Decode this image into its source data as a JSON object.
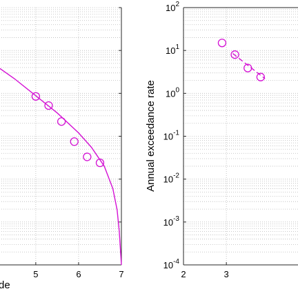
{
  "chart_data": [
    {
      "type": "line",
      "xlabel": "de",
      "ylabel": "",
      "xlim": [
        4.1,
        7.0
      ],
      "xticks": [
        5,
        6,
        7
      ],
      "yscale": "log",
      "ylim_log10": [
        -4,
        2
      ],
      "grid": true,
      "color": "#d411d4",
      "series": [
        {
          "kind": "scatter",
          "marker": "circle-open",
          "x": [
            5.0,
            5.3,
            5.6,
            5.9,
            6.2,
            6.5
          ],
          "y": [
            0.85,
            0.52,
            0.22,
            0.075,
            0.033,
            0.024
          ]
        },
        {
          "kind": "line",
          "x": [
            4.1,
            4.5,
            5.0,
            5.5,
            6.0,
            6.3,
            6.6,
            6.8,
            6.9,
            6.95,
            6.98,
            7.0
          ],
          "y": [
            4.2,
            2.2,
            0.88,
            0.35,
            0.12,
            0.055,
            0.02,
            0.006,
            0.0019,
            0.0006,
            0.0002,
            0.0001
          ]
        }
      ]
    },
    {
      "type": "line",
      "xlabel": "",
      "ylabel": "Annual exceedance rate",
      "xlim": [
        2,
        4.8
      ],
      "xticks": [
        2,
        3
      ],
      "yscale": "log",
      "ylim_log10": [
        -4,
        2
      ],
      "ytick_labels": [
        "10-4",
        "10-3",
        "10-2",
        "10-1",
        "100",
        "101",
        "102"
      ],
      "grid": true,
      "color": "#d411d4",
      "series": [
        {
          "kind": "scatter",
          "marker": "circle-open",
          "x": [
            2.9,
            3.2,
            3.5,
            3.8
          ],
          "y": [
            15,
            8,
            3.9,
            2.4
          ]
        },
        {
          "kind": "line",
          "style": "dashed",
          "x": [
            3.15,
            3.9
          ],
          "y": [
            8.5,
            2.2
          ]
        }
      ]
    }
  ]
}
